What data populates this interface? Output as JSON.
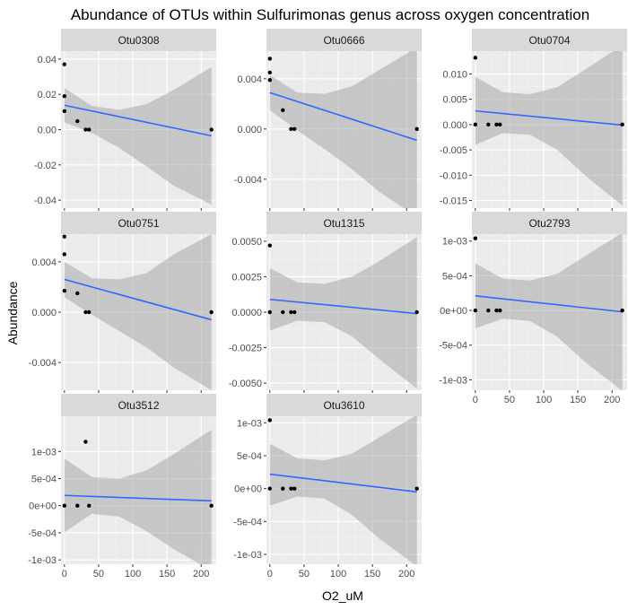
{
  "chart_data": {
    "type": "scatter",
    "title": "Abundance of OTUs within Sulfurimonas genus across oxygen concentration",
    "xlabel": "O2_uM",
    "ylabel": "Abundance",
    "x_ticks": [
      0,
      50,
      100,
      150,
      200
    ],
    "x_tick_labels": [
      "0",
      "50",
      "100",
      "150",
      "200"
    ],
    "xlim": [
      -5,
      222
    ],
    "grid": true,
    "panels": [
      {
        "name": "Otu0308",
        "ylim": [
          -0.0445,
          0.0445
        ],
        "y_ticks": [
          -0.04,
          -0.02,
          0.0,
          0.02,
          0.04
        ],
        "y_tick_labels": [
          "-0.04",
          "-0.02",
          "0.00",
          "0.02",
          "0.04"
        ],
        "points": [
          [
            0,
            0.037
          ],
          [
            0,
            0.019
          ],
          [
            0,
            0.0105
          ],
          [
            19,
            0.0048
          ],
          [
            31,
            0.0
          ],
          [
            36,
            0.0
          ],
          [
            215,
            0.0
          ]
        ],
        "fit": [
          [
            0,
            0.0138
          ],
          [
            215,
            -0.0035
          ]
        ],
        "ci_upper": [
          [
            0,
            0.0235
          ],
          [
            40,
            0.0135
          ],
          [
            80,
            0.0112
          ],
          [
            120,
            0.0145
          ],
          [
            160,
            0.0225
          ],
          [
            215,
            0.0355
          ]
        ],
        "ci_lower": [
          [
            0,
            0.0041
          ],
          [
            40,
            -0.0018
          ],
          [
            80,
            -0.0104
          ],
          [
            120,
            -0.0208
          ],
          [
            160,
            -0.0318
          ],
          [
            215,
            -0.0425
          ]
        ]
      },
      {
        "name": "Otu0666",
        "ylim": [
          -0.0063,
          0.0062
        ],
        "y_ticks": [
          -0.004,
          0.0,
          0.004
        ],
        "y_tick_labels": [
          "-0.004",
          "0.000",
          "0.004"
        ],
        "points": [
          [
            0,
            0.0056
          ],
          [
            0,
            0.0045
          ],
          [
            0,
            0.0039
          ],
          [
            19,
            0.0015
          ],
          [
            31,
            0.0
          ],
          [
            36,
            0.0
          ],
          [
            215,
            0.0
          ]
        ],
        "fit": [
          [
            0,
            0.0029
          ],
          [
            215,
            -0.0009
          ]
        ],
        "ci_upper": [
          [
            0,
            0.0043
          ],
          [
            40,
            0.0029
          ],
          [
            80,
            0.0028
          ],
          [
            120,
            0.0034
          ],
          [
            160,
            0.0047
          ],
          [
            215,
            0.0065
          ]
        ],
        "ci_lower": [
          [
            0,
            0.0015
          ],
          [
            40,
            -0.0001
          ],
          [
            80,
            -0.0016
          ],
          [
            120,
            -0.0032
          ],
          [
            160,
            -0.005
          ],
          [
            215,
            -0.007
          ]
        ]
      },
      {
        "name": "Otu0704",
        "ylim": [
          -0.0165,
          0.0145
        ],
        "y_ticks": [
          -0.015,
          -0.01,
          -0.005,
          0.0,
          0.005,
          0.01
        ],
        "y_tick_labels": [
          "-0.015",
          "-0.010",
          "-0.005",
          "0.000",
          "0.005",
          "0.010"
        ],
        "points": [
          [
            0,
            0.0132
          ],
          [
            0,
            0.0
          ],
          [
            19,
            0.0
          ],
          [
            31,
            0.0
          ],
          [
            36,
            0.0
          ],
          [
            215,
            0.0
          ]
        ],
        "fit": [
          [
            0,
            0.0027
          ],
          [
            215,
            -0.0001
          ]
        ],
        "ci_upper": [
          [
            0,
            0.0094
          ],
          [
            40,
            0.0064
          ],
          [
            80,
            0.006
          ],
          [
            120,
            0.0074
          ],
          [
            160,
            0.0108
          ],
          [
            215,
            0.0157
          ]
        ],
        "ci_lower": [
          [
            0,
            -0.004
          ],
          [
            40,
            -0.0017
          ],
          [
            80,
            -0.002
          ],
          [
            120,
            -0.005
          ],
          [
            160,
            -0.01
          ],
          [
            215,
            -0.016
          ]
        ]
      },
      {
        "name": "Otu0751",
        "ylim": [
          -0.0062,
          0.0062
        ],
        "y_ticks": [
          -0.004,
          0.0,
          0.004
        ],
        "y_tick_labels": [
          "-0.004",
          "0.000",
          "0.004"
        ],
        "points": [
          [
            0,
            0.006
          ],
          [
            0,
            0.0046
          ],
          [
            0,
            0.0017
          ],
          [
            19,
            0.0015
          ],
          [
            31,
            0.0
          ],
          [
            36,
            0.0
          ],
          [
            215,
            0.0
          ]
        ],
        "fit": [
          [
            0,
            0.0026
          ],
          [
            215,
            -0.0006
          ]
        ],
        "ci_upper": [
          [
            0,
            0.004
          ],
          [
            40,
            0.0027
          ],
          [
            80,
            0.0026
          ],
          [
            120,
            0.0031
          ],
          [
            160,
            0.0046
          ],
          [
            215,
            0.0062
          ]
        ],
        "ci_lower": [
          [
            0,
            0.0012
          ],
          [
            40,
            -0.0002
          ],
          [
            80,
            -0.0015
          ],
          [
            120,
            -0.0028
          ],
          [
            160,
            -0.0044
          ],
          [
            215,
            -0.0062
          ]
        ]
      },
      {
        "name": "Otu1315",
        "ylim": [
          -0.0055,
          0.0055
        ],
        "y_ticks": [
          -0.005,
          -0.0025,
          0.0,
          0.0025,
          0.005
        ],
        "y_tick_labels": [
          "-0.0050",
          "-0.0025",
          "0.0000",
          "0.0025",
          "0.0050"
        ],
        "points": [
          [
            0,
            0.0047
          ],
          [
            0,
            0.0
          ],
          [
            19,
            0.0
          ],
          [
            31,
            0.0
          ],
          [
            36,
            0.0
          ],
          [
            215,
            0.0
          ]
        ],
        "fit": [
          [
            0,
            0.0009
          ],
          [
            215,
            -0.0001
          ]
        ],
        "ci_upper": [
          [
            0,
            0.0031
          ],
          [
            40,
            0.0021
          ],
          [
            80,
            0.002
          ],
          [
            120,
            0.0025
          ],
          [
            160,
            0.0036
          ],
          [
            215,
            0.0053
          ]
        ],
        "ci_lower": [
          [
            0,
            -0.0013
          ],
          [
            40,
            -0.0006
          ],
          [
            80,
            -0.0007
          ],
          [
            120,
            -0.0017
          ],
          [
            160,
            -0.0033
          ],
          [
            215,
            -0.0054
          ]
        ]
      },
      {
        "name": "Otu2793",
        "ylim": [
          -0.00115,
          0.0011
        ],
        "y_ticks": [
          -0.001,
          -0.0005,
          0.0,
          0.0005,
          0.001
        ],
        "y_tick_labels": [
          "-1e-03",
          "-5e-04",
          "0e+00",
          "5e-04",
          "1e-03"
        ],
        "points": [
          [
            0,
            0.00104
          ],
          [
            0,
            0.0
          ],
          [
            19,
            0.0
          ],
          [
            31,
            0.0
          ],
          [
            36,
            0.0
          ],
          [
            215,
            0.0
          ]
        ],
        "fit": [
          [
            0,
            0.00021
          ],
          [
            215,
            -2e-05
          ]
        ],
        "ci_upper": [
          [
            0,
            0.00068
          ],
          [
            40,
            0.00046
          ],
          [
            80,
            0.00043
          ],
          [
            120,
            0.00053
          ],
          [
            160,
            0.00078
          ],
          [
            215,
            0.00112
          ]
        ],
        "ci_lower": [
          [
            0,
            -0.00026
          ],
          [
            40,
            -0.00012
          ],
          [
            80,
            -0.00015
          ],
          [
            120,
            -0.00038
          ],
          [
            160,
            -0.00074
          ],
          [
            215,
            -0.00116
          ]
        ]
      },
      {
        "name": "Otu3512",
        "ylim": [
          -0.00108,
          0.00165
        ],
        "y_ticks": [
          -0.001,
          -0.0005,
          0.0,
          0.0005,
          0.001
        ],
        "y_tick_labels": [
          "-1e-03",
          "-5e-04",
          "0e+00",
          "5e-04",
          "1e-03"
        ],
        "points": [
          [
            0,
            0.0
          ],
          [
            19,
            0.0
          ],
          [
            31,
            0.00118
          ],
          [
            36,
            0.0
          ],
          [
            215,
            0.0
          ]
        ],
        "fit": [
          [
            0,
            0.00019
          ],
          [
            215,
            9e-05
          ]
        ],
        "ci_upper": [
          [
            0,
            0.00087
          ],
          [
            40,
            0.00053
          ],
          [
            80,
            0.0005
          ],
          [
            120,
            0.00065
          ],
          [
            160,
            0.00095
          ],
          [
            215,
            0.0014
          ]
        ],
        "ci_lower": [
          [
            0,
            -0.00049
          ],
          [
            40,
            -0.00015
          ],
          [
            80,
            -0.0002
          ],
          [
            120,
            -0.00047
          ],
          [
            160,
            -0.0008
          ],
          [
            215,
            -0.0012
          ]
        ]
      },
      {
        "name": "Otu3610",
        "ylim": [
          -0.00115,
          0.0011
        ],
        "y_ticks": [
          -0.001,
          -0.0005,
          0.0,
          0.0005,
          0.001
        ],
        "y_tick_labels": [
          "-1e-03",
          "-5e-04",
          "0e+00",
          "5e-04",
          "1e-03"
        ],
        "points": [
          [
            0,
            0.00104
          ],
          [
            0,
            0.0
          ],
          [
            19,
            0.0
          ],
          [
            31,
            0.0
          ],
          [
            36,
            0.0
          ],
          [
            215,
            0.0
          ]
        ],
        "fit": [
          [
            0,
            0.00022
          ],
          [
            215,
            -5e-05
          ]
        ],
        "ci_upper": [
          [
            0,
            0.00068
          ],
          [
            40,
            0.00046
          ],
          [
            80,
            0.00043
          ],
          [
            120,
            0.00053
          ],
          [
            160,
            0.00078
          ],
          [
            215,
            0.00112
          ]
        ],
        "ci_lower": [
          [
            0,
            -0.00026
          ],
          [
            40,
            -0.00012
          ],
          [
            80,
            -0.00015
          ],
          [
            120,
            -0.0004
          ],
          [
            160,
            -0.00076
          ],
          [
            215,
            -0.00118
          ]
        ]
      }
    ],
    "colors": {
      "panel_bg": "#ebebeb",
      "strip_bg": "#d9d9d9",
      "grid_major": "#ffffff",
      "grid_minor": "#f4f4f4",
      "point": "#000000",
      "fit_line": "#3366ff",
      "ci_fill": "#999999"
    }
  }
}
